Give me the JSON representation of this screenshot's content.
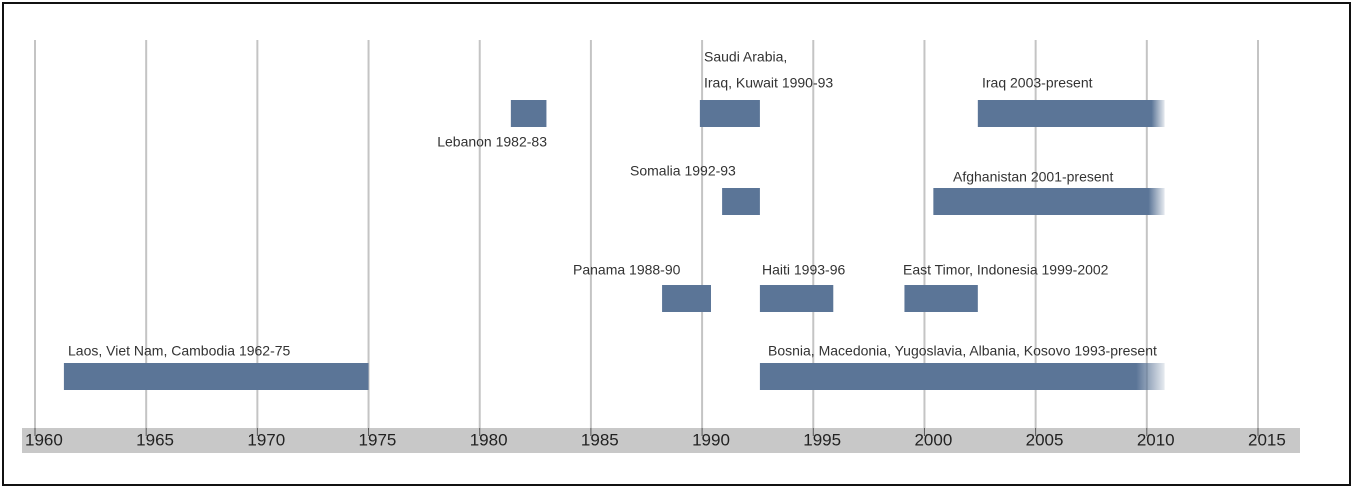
{
  "chart_data": {
    "type": "timeline",
    "xlim": [
      1960,
      2015
    ],
    "xticks": [
      1960,
      1965,
      1970,
      1975,
      1980,
      1985,
      1990,
      1995,
      2000,
      2005,
      2010,
      2015
    ],
    "grid": true,
    "color": "#5b7597",
    "items": [
      {
        "label": "Laos, Viet Nam, Cambodia 1962-75",
        "start": 1961.3,
        "end": 1975
      },
      {
        "label": "Lebanon 1982-83",
        "start": 1981.4,
        "end": 1983
      },
      {
        "label": [
          "Saudi Arabia,",
          "Iraq, Kuwait 1990-93"
        ],
        "start": 1989.9,
        "end": 1992.6
      },
      {
        "label": "Iraq 2003-present",
        "start": 2002.4,
        "end": 2010.8,
        "fade": true
      },
      {
        "label": "Somalia 1992-93",
        "start": 1990.9,
        "end": 1992.6
      },
      {
        "label": "Afghanistan 2001-present",
        "start": 2000.4,
        "end": 2010.8,
        "fade": true
      },
      {
        "label": "Panama 1988-90",
        "start": 1988.2,
        "end": 1990.4
      },
      {
        "label": "Haiti 1993-96",
        "start": 1992.6,
        "end": 1995.9
      },
      {
        "label": "East Timor, Indonesia 1999-2002",
        "start": 1999.1,
        "end": 2002.4
      },
      {
        "label": "Bosnia, Macedonia, Yugoslavia, Albania, Kosovo 1993-present",
        "start": 1992.6,
        "end": 2010.8,
        "fade": true
      }
    ]
  }
}
